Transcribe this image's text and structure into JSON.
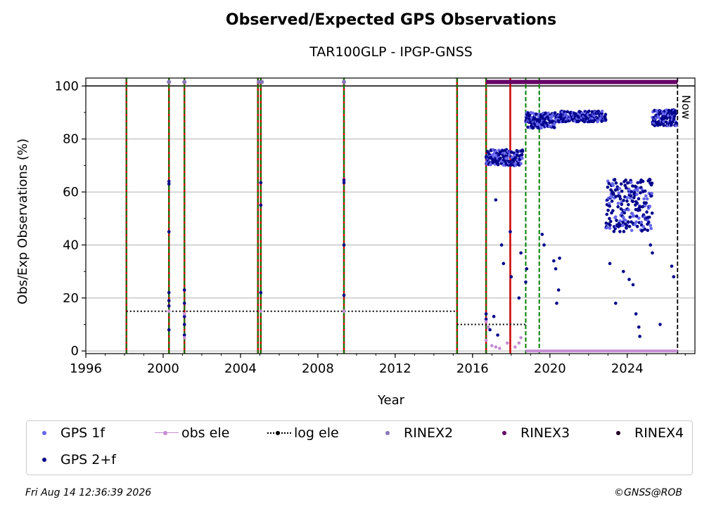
{
  "header": {
    "title": "Observed/Expected GPS Observations",
    "subtitle": "TAR100GLP - IPGP-GNSS"
  },
  "footer": {
    "timestamp": "Fri Aug 14 12:36:39 2026",
    "credit": "©GNSS@ROB"
  },
  "colors": {
    "gps1f": "#6666ee",
    "gps2f": "#00008b",
    "obs_ele": "#c68bd3",
    "log_ele": "#000000",
    "rinex2": "#8877bb",
    "rinex3": "#660066",
    "rinex4": "#220022",
    "red_line": "#cc0000",
    "green_dash": "#008000"
  },
  "legend": {
    "items": [
      {
        "label": "GPS 1f",
        "key": "gps1f"
      },
      {
        "label": "obs ele",
        "key": "obs_ele"
      },
      {
        "label": "log ele",
        "key": "log_ele"
      },
      {
        "label": "RINEX2",
        "key": "rinex2"
      },
      {
        "label": "RINEX3",
        "key": "rinex3"
      },
      {
        "label": "RINEX4",
        "key": "rinex4"
      },
      {
        "label": "GPS 2+f",
        "key": "gps2f"
      }
    ]
  },
  "chart_data": {
    "type": "scatter",
    "title": "Observed/Expected GPS Observations",
    "subtitle": "TAR100GLP - IPGP-GNSS",
    "xlabel": "Year",
    "ylabel": "Obs/Exp Observations (%)",
    "xlim": [
      1996,
      2027.5
    ],
    "ylim": [
      -1,
      103
    ],
    "x_ticks": [
      1996,
      2000,
      2004,
      2008,
      2012,
      2016,
      2020,
      2024
    ],
    "y_ticks": [
      0,
      20,
      40,
      60,
      80,
      100
    ],
    "grid": "horizontal",
    "legend_position": "bottom",
    "now_label": "Now",
    "now_x": 2026.6,
    "hundred_line": 100,
    "red_lines": [
      1998.1,
      2000.3,
      2001.1,
      2004.9,
      2005.05,
      2009.35,
      2015.2,
      2016.7,
      2017.95
    ],
    "green_dashed_lines": [
      1998.1,
      2000.3,
      2001.1,
      2004.9,
      2005.05,
      2009.35,
      2015.2,
      2016.7,
      2018.75,
      2019.45
    ],
    "log_ele": [
      {
        "x": [
          1998.1,
          2015.2
        ],
        "y": 15
      },
      {
        "x": [
          2015.2,
          2018.75
        ],
        "y": 10
      },
      {
        "x": [
          2018.75,
          2026.6
        ],
        "y": 0
      }
    ],
    "rinex2_points": [
      [
        2000.3,
        101.5
      ],
      [
        2001.1,
        101.5
      ],
      [
        2004.95,
        101.5
      ],
      [
        2005.1,
        101.5
      ],
      [
        2009.35,
        101.5
      ]
    ],
    "rinex3_range": [
      2016.7,
      2026.6
    ],
    "rinex3_y": 101.5,
    "rinex2_low_range": [
      2018.75,
      2026.6
    ],
    "series": [
      {
        "name": "GPS 2+f",
        "key": "gps2f",
        "points": [
          [
            2000.3,
            64
          ],
          [
            2000.3,
            63
          ],
          [
            2000.3,
            45
          ],
          [
            2000.3,
            22
          ],
          [
            2000.3,
            19
          ],
          [
            2000.3,
            17
          ],
          [
            2000.3,
            8
          ],
          [
            2001.1,
            23
          ],
          [
            2001.1,
            18
          ],
          [
            2001.1,
            13
          ],
          [
            2001.1,
            10
          ],
          [
            2001.1,
            6
          ],
          [
            2005.05,
            63.5
          ],
          [
            2005.05,
            55
          ],
          [
            2005.05,
            22
          ],
          [
            2009.35,
            64.5
          ],
          [
            2009.35,
            63.5
          ],
          [
            2009.35,
            40
          ],
          [
            2009.35,
            21
          ],
          [
            2016.7,
            14
          ],
          [
            2016.7,
            12
          ]
        ]
      },
      {
        "name": "obs ele",
        "key": "obs_ele",
        "points": [
          [
            2000.3,
            15
          ],
          [
            2001.1,
            14
          ],
          [
            2001.1,
            5
          ],
          [
            2005.05,
            15
          ],
          [
            2009.35,
            15
          ],
          [
            2016.7,
            11
          ],
          [
            2016.7,
            4
          ]
        ]
      }
    ],
    "dense_segments": [
      {
        "from": 2016.7,
        "to": 2018.6,
        "level": 73,
        "spread": 3,
        "key": "gps2f"
      },
      {
        "from": 2018.75,
        "to": 2020.3,
        "level": 87,
        "spread": 3,
        "key": "gps2f"
      },
      {
        "from": 2020.3,
        "to": 2022.9,
        "level": 88.5,
        "spread": 2,
        "key": "gps2f"
      },
      {
        "from": 2022.9,
        "to": 2025.3,
        "level": 55,
        "spread": 10,
        "key": "gps2f"
      },
      {
        "from": 2025.3,
        "to": 2026.55,
        "level": 88,
        "spread": 3,
        "key": "gps2f"
      }
    ],
    "outliers": [
      [
        2017.2,
        57
      ],
      [
        2017.5,
        40
      ],
      [
        2017.6,
        33
      ],
      [
        2017.95,
        45
      ],
      [
        2018.0,
        28
      ],
      [
        2018.4,
        20
      ],
      [
        2018.5,
        37
      ],
      [
        2017.1,
        13
      ],
      [
        2016.9,
        8
      ],
      [
        2017.3,
        6
      ],
      [
        2018.75,
        26
      ],
      [
        2018.8,
        31
      ],
      [
        2019.6,
        44
      ],
      [
        2019.7,
        40
      ],
      [
        2020.2,
        34
      ],
      [
        2020.3,
        31
      ],
      [
        2020.35,
        18
      ],
      [
        2020.45,
        23
      ],
      [
        2020.5,
        35
      ],
      [
        2023.1,
        33
      ],
      [
        2023.4,
        18
      ],
      [
        2023.8,
        30
      ],
      [
        2024.1,
        27
      ],
      [
        2024.3,
        25
      ],
      [
        2024.45,
        14
      ],
      [
        2024.6,
        9
      ],
      [
        2024.65,
        5.5
      ],
      [
        2025.2,
        40
      ],
      [
        2025.3,
        37
      ],
      [
        2025.7,
        10
      ],
      [
        2026.3,
        32
      ],
      [
        2026.4,
        28
      ]
    ],
    "obs_ele_low": [
      [
        2016.8,
        9
      ],
      [
        2017.0,
        2
      ],
      [
        2017.2,
        1.5
      ],
      [
        2017.4,
        1
      ],
      [
        2017.8,
        3
      ],
      [
        2018.2,
        1.5
      ],
      [
        2018.4,
        3
      ],
      [
        2018.5,
        5
      ]
    ]
  }
}
